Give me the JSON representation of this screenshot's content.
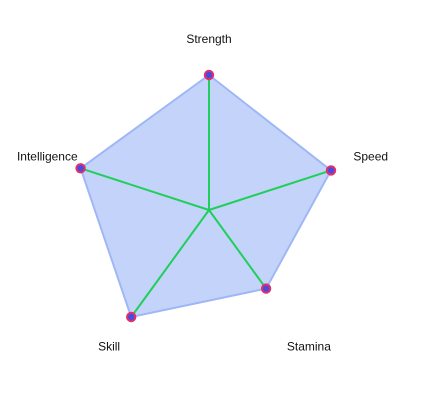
{
  "chart_data": {
    "type": "radar",
    "categories": [
      "Strength",
      "Speed",
      "Stamina",
      "Skill",
      "Intelligence"
    ],
    "values": [
      1.0,
      0.95,
      0.72,
      0.98,
      1.0
    ],
    "rlim": [
      0,
      1
    ],
    "grid": false,
    "colors": {
      "fill": "#9fb8f5",
      "outline": "#9fb8f5",
      "spokes": "#1fcf5a",
      "marker_fill": "#4a4ae0",
      "marker_edge": "#e0306a"
    }
  }
}
